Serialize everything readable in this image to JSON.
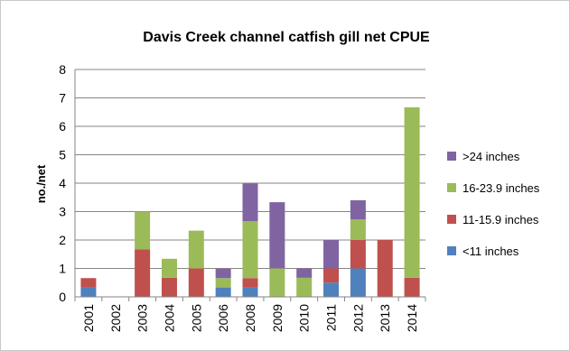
{
  "chart_data": {
    "type": "bar",
    "stacked": true,
    "title": "Davis Creek channel catfish gill net CPUE",
    "xlabel": "",
    "ylabel": "no./net",
    "ylim": [
      0,
      8
    ],
    "yticks": [
      "0",
      "1",
      "2",
      "3",
      "4",
      "5",
      "6",
      "7",
      "8"
    ],
    "grid": true,
    "legend_position": "right",
    "categories": [
      "2001",
      "2002",
      "2003",
      "2004",
      "2005",
      "2006",
      "2008",
      "2009",
      "2010",
      "2011",
      "2012",
      "2013",
      "2014"
    ],
    "series": [
      {
        "name": "<11 inches",
        "color": "#4f81bd",
        "values": [
          0.33,
          0,
          0,
          0,
          0,
          0.33,
          0.33,
          0,
          0,
          0.5,
          1.0,
          0,
          0
        ]
      },
      {
        "name": "11-15.9 inches",
        "color": "#c0504d",
        "values": [
          0.33,
          0,
          1.67,
          0.67,
          1.0,
          0,
          0.33,
          0,
          0,
          0.5,
          1.0,
          2.0,
          0.67
        ]
      },
      {
        "name": "16-23.9 inches",
        "color": "#9bbb59",
        "values": [
          0,
          0,
          1.33,
          0.67,
          1.33,
          0.33,
          2.0,
          1.0,
          0.67,
          0,
          0.73,
          0,
          6.0
        ]
      },
      {
        "name": ">24 inches",
        "color": "#8064a2",
        "values": [
          0,
          0,
          0,
          0,
          0,
          0.33,
          1.33,
          2.33,
          0.33,
          1.0,
          0.67,
          0,
          0
        ]
      }
    ],
    "legend_order": [
      ">24 inches",
      "16-23.9 inches",
      "11-15.9 inches",
      "<11 inches"
    ]
  }
}
